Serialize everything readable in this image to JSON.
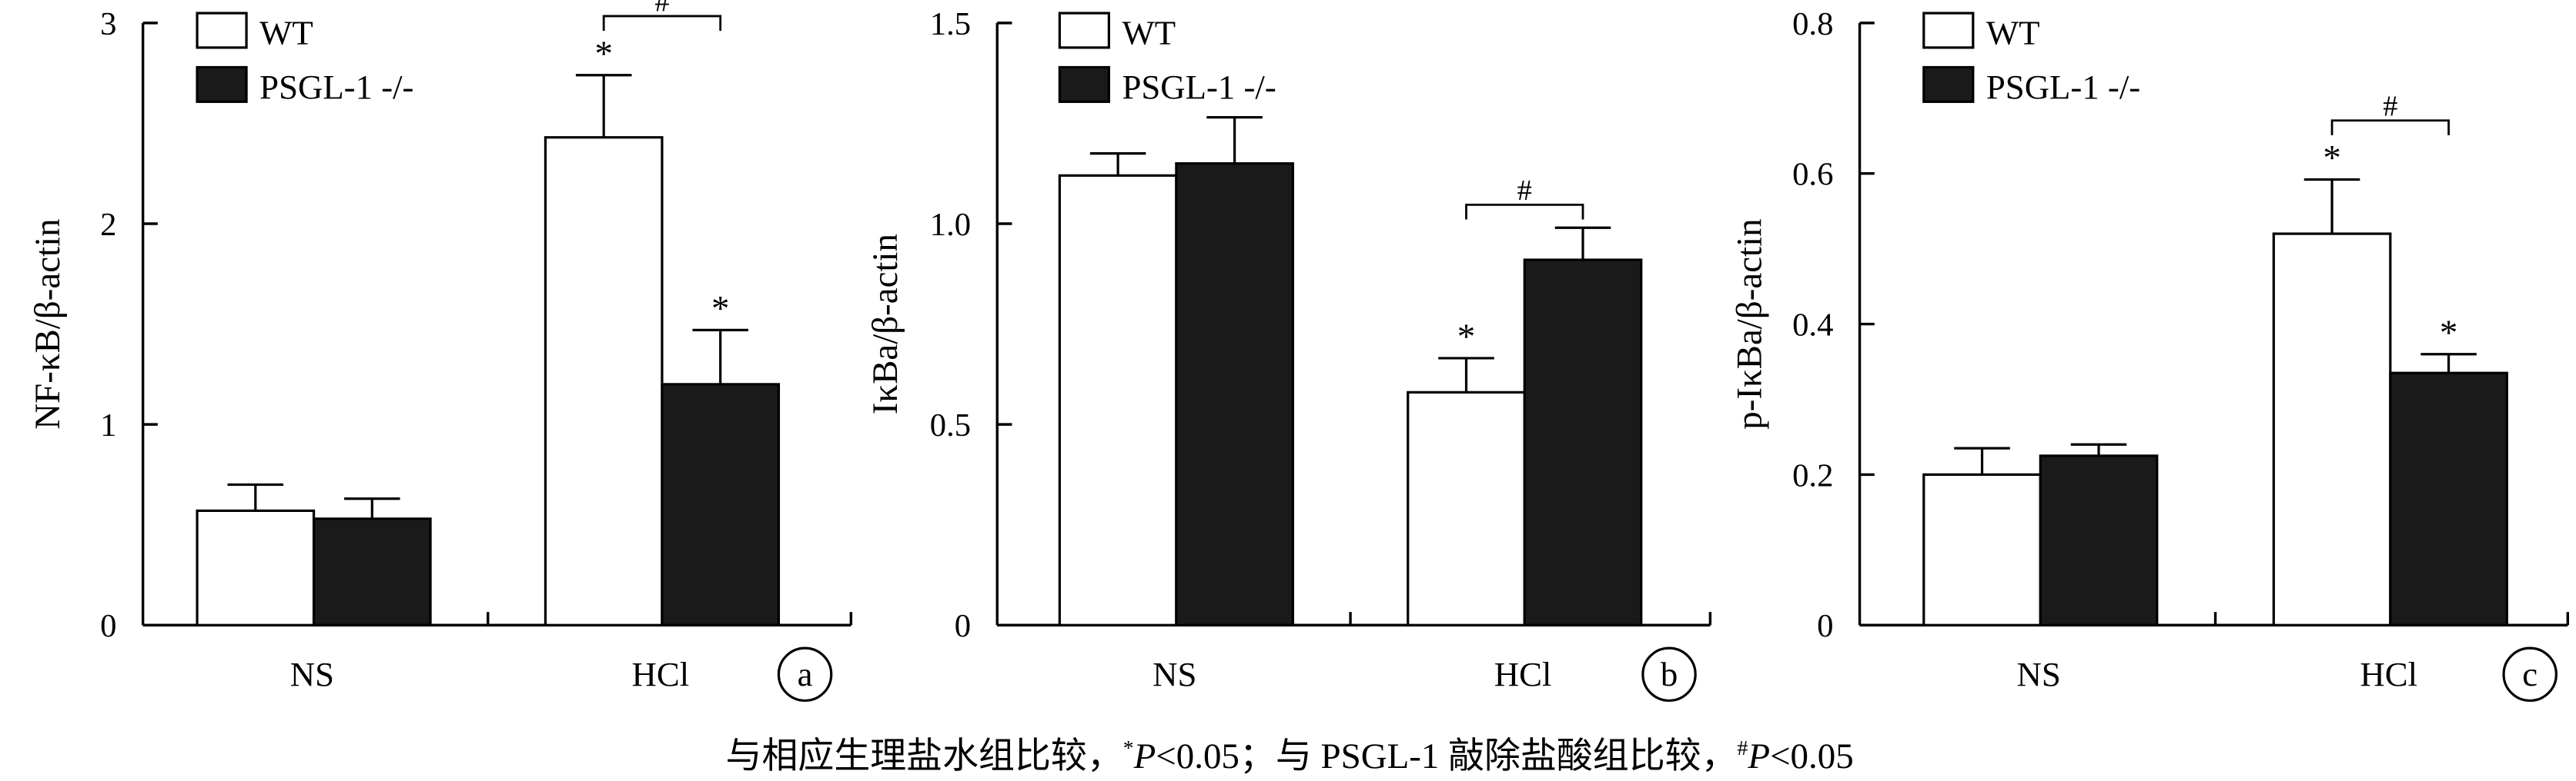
{
  "chart_data": [
    {
      "type": "bar",
      "panel_label": "a",
      "categories": [
        "NS",
        "HCl"
      ],
      "ylabel": "NF-κB/β-actin",
      "ylim": [
        0,
        3
      ],
      "yticks": [
        "0",
        "1",
        "2",
        "3"
      ],
      "legend_position": "top-left",
      "series": [
        {
          "name": "WT",
          "values": [
            0.57,
            2.43
          ],
          "errors": [
            0.13,
            0.31
          ],
          "color": "#ffffff"
        },
        {
          "name": "PSGL-1 -/-",
          "values": [
            0.53,
            1.2
          ],
          "errors": [
            0.1,
            0.27
          ],
          "color": "#1a1a1a"
        }
      ],
      "markers": [
        {
          "text": "*",
          "series": 0,
          "category": 1
        },
        {
          "text": "*",
          "series": 1,
          "category": 1
        }
      ],
      "bracket": {
        "text": "#",
        "category": 1
      }
    },
    {
      "type": "bar",
      "panel_label": "b",
      "categories": [
        "NS",
        "HCl"
      ],
      "ylabel": "IκBa/β-actin",
      "ylim": [
        0,
        1.5
      ],
      "yticks": [
        "0",
        "0.5",
        "1.0",
        "1.5"
      ],
      "legend_position": "top-left",
      "series": [
        {
          "name": "WT",
          "values": [
            1.12,
            0.58
          ],
          "errors": [
            0.055,
            0.085
          ],
          "color": "#ffffff"
        },
        {
          "name": "PSGL-1 -/-",
          "values": [
            1.15,
            0.91
          ],
          "errors": [
            0.115,
            0.08
          ],
          "color": "#1a1a1a"
        }
      ],
      "markers": [
        {
          "text": "*",
          "series": 0,
          "category": 1
        }
      ],
      "bracket": {
        "text": "#",
        "category": 1
      }
    },
    {
      "type": "bar",
      "panel_label": "c",
      "categories": [
        "NS",
        "HCl"
      ],
      "ylabel": "p-IκBa/β-actin",
      "ylim": [
        0,
        0.8
      ],
      "yticks": [
        "0",
        "0.2",
        "0.4",
        "0.6",
        "0.8"
      ],
      "legend_position": "top-left",
      "series": [
        {
          "name": "WT",
          "values": [
            0.2,
            0.52
          ],
          "errors": [
            0.035,
            0.072
          ],
          "color": "#ffffff"
        },
        {
          "name": "PSGL-1 -/-",
          "values": [
            0.225,
            0.335
          ],
          "errors": [
            0.015,
            0.025
          ],
          "color": "#1a1a1a"
        }
      ],
      "markers": [
        {
          "text": "*",
          "series": 0,
          "category": 1
        },
        {
          "text": "*",
          "series": 1,
          "category": 1
        }
      ],
      "bracket": {
        "text": "#",
        "category": 1
      }
    }
  ],
  "caption": {
    "part1": "与相应生理盐水组比较，",
    "sup1": "*",
    "p1": "P",
    "rest1": "<0.05；与 PSGL-1 敲除盐酸组比较，",
    "sup2": "#",
    "p2": "P",
    "rest2": "<0.05"
  }
}
